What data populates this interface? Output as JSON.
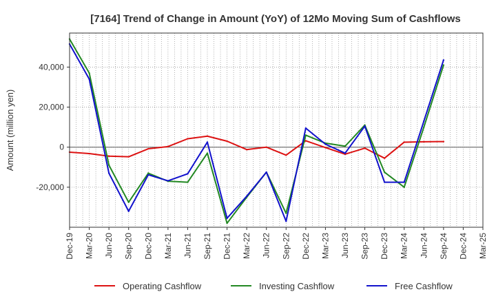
{
  "chart_data": {
    "type": "line",
    "title": "[7164]  Trend of Change in Amount (YoY) of 12Mo Moving Sum of Cashflows",
    "xlabel": "",
    "ylabel": "Amount (million yen)",
    "ylim": [
      -40000,
      57000
    ],
    "yticks": [
      -20000,
      0,
      20000,
      40000
    ],
    "ytick_labels": [
      "-20,000",
      "0",
      "20,000",
      "40,000"
    ],
    "grid": true,
    "legend_position": "bottom",
    "categories": [
      "Dec-19",
      "Mar-20",
      "Jun-20",
      "Sep-20",
      "Dec-20",
      "Mar-21",
      "Jun-21",
      "Sep-21",
      "Dec-21",
      "Mar-22",
      "Jun-22",
      "Sep-22",
      "Dec-22",
      "Mar-23",
      "Jun-23",
      "Sep-23",
      "Dec-23",
      "Mar-24",
      "Jun-24",
      "Sep-24",
      "Dec-24",
      "Mar-25"
    ],
    "x_tick_labels": [
      "Dec-19",
      "Mar-20",
      "Jun-20",
      "Sep-20",
      "Dec-20",
      "Mar-21",
      "Jun-21",
      "Sep-21",
      "Dec-21",
      "Mar-22",
      "Jun-22",
      "Sep-22",
      "Dec-22",
      "Mar-23",
      "Jun-23",
      "Sep-23",
      "Dec-23",
      "Mar-24",
      "Jun-24",
      "Sep-24",
      "Dec-24",
      "Mar-25"
    ],
    "series": [
      {
        "name": "Operating Cashflow",
        "color": "#dd1111",
        "values": [
          -2500,
          -3200,
          -4500,
          -4800,
          -800,
          300,
          4200,
          5500,
          3000,
          -1200,
          0,
          -4000,
          3200,
          -200,
          -3500,
          -500,
          -5500,
          2500,
          2700,
          2800,
          null,
          null
        ]
      },
      {
        "name": "Investing Cashflow",
        "color": "#228822",
        "values": [
          54000,
          37000,
          -9000,
          -27500,
          -13000,
          -17000,
          -17500,
          -3000,
          -38000,
          -25000,
          -12500,
          -33000,
          6000,
          2000,
          500,
          11000,
          -12500,
          -20000,
          10000,
          41000,
          null,
          null
        ]
      },
      {
        "name": "Free Cashflow",
        "color": "#1111cc",
        "values": [
          51500,
          34000,
          -13000,
          -32000,
          -13800,
          -16800,
          -13300,
          2500,
          -35500,
          -24500,
          -12500,
          -37000,
          9500,
          1500,
          -3000,
          10500,
          -17500,
          -17500,
          13000,
          43500,
          null,
          null
        ]
      }
    ]
  }
}
